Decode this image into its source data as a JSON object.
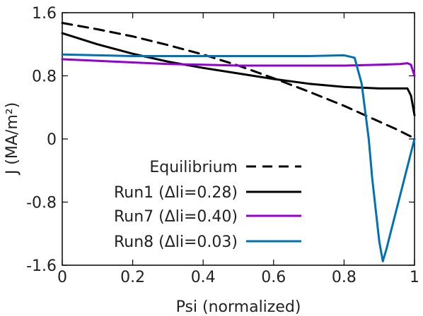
{
  "chart_data": {
    "type": "line",
    "title": "",
    "xlabel": "Psi (normalized)",
    "ylabel": "J (MA/m²)",
    "xlim": [
      0,
      1
    ],
    "ylim": [
      -1.6,
      1.6
    ],
    "x_ticks": [
      0,
      0.2,
      0.4,
      0.6,
      0.8,
      1
    ],
    "x_tick_labels": [
      "0",
      "0.2",
      "0.4",
      "0.6",
      "0.8",
      "1"
    ],
    "y_ticks": [
      -1.6,
      -0.8,
      0,
      0.8,
      1.6
    ],
    "y_tick_labels": [
      "-1.6",
      "-0.8",
      "0",
      "0.8",
      "1.6"
    ],
    "grid": false,
    "legend_position": "bottom-left",
    "series": [
      {
        "name": "Equilibrium",
        "color": "#000000",
        "dash": "dashed",
        "x": [
          0,
          0.1,
          0.2,
          0.3,
          0.4,
          0.5,
          0.6,
          0.7,
          0.8,
          0.9,
          0.95,
          0.99,
          1.0
        ],
        "y": [
          1.47,
          1.39,
          1.3,
          1.19,
          1.07,
          0.93,
          0.77,
          0.6,
          0.42,
          0.22,
          0.12,
          0.03,
          0.0
        ]
      },
      {
        "name": "Run1 (Δli=0.28)",
        "color": "#000000",
        "dash": "solid",
        "x": [
          0,
          0.1,
          0.2,
          0.3,
          0.4,
          0.5,
          0.6,
          0.7,
          0.8,
          0.9,
          0.96,
          0.98,
          0.99,
          1.0
        ],
        "y": [
          1.34,
          1.2,
          1.08,
          0.98,
          0.9,
          0.83,
          0.76,
          0.7,
          0.66,
          0.64,
          0.64,
          0.64,
          0.55,
          0.3
        ]
      },
      {
        "name": "Run7 (Δli=0.40)",
        "color": "#9400d3",
        "dash": "solid",
        "x": [
          0,
          0.1,
          0.2,
          0.3,
          0.4,
          0.5,
          0.6,
          0.7,
          0.8,
          0.9,
          0.96,
          0.98,
          0.99,
          1.0
        ],
        "y": [
          1.01,
          0.99,
          0.97,
          0.95,
          0.94,
          0.93,
          0.93,
          0.93,
          0.93,
          0.94,
          0.95,
          0.96,
          0.94,
          0.8
        ]
      },
      {
        "name": "Run8 (Δli=0.03)",
        "color": "#0072b2",
        "dash": "solid",
        "x": [
          0,
          0.1,
          0.2,
          0.3,
          0.4,
          0.5,
          0.6,
          0.7,
          0.8,
          0.83,
          0.85,
          0.87,
          0.88,
          0.9,
          0.91,
          0.92,
          0.94,
          0.96,
          0.98,
          1.0
        ],
        "y": [
          1.07,
          1.06,
          1.05,
          1.05,
          1.05,
          1.05,
          1.05,
          1.05,
          1.06,
          1.03,
          0.7,
          0.0,
          -0.5,
          -1.3,
          -1.55,
          -1.4,
          -1.05,
          -0.7,
          -0.35,
          0.0
        ]
      }
    ]
  }
}
